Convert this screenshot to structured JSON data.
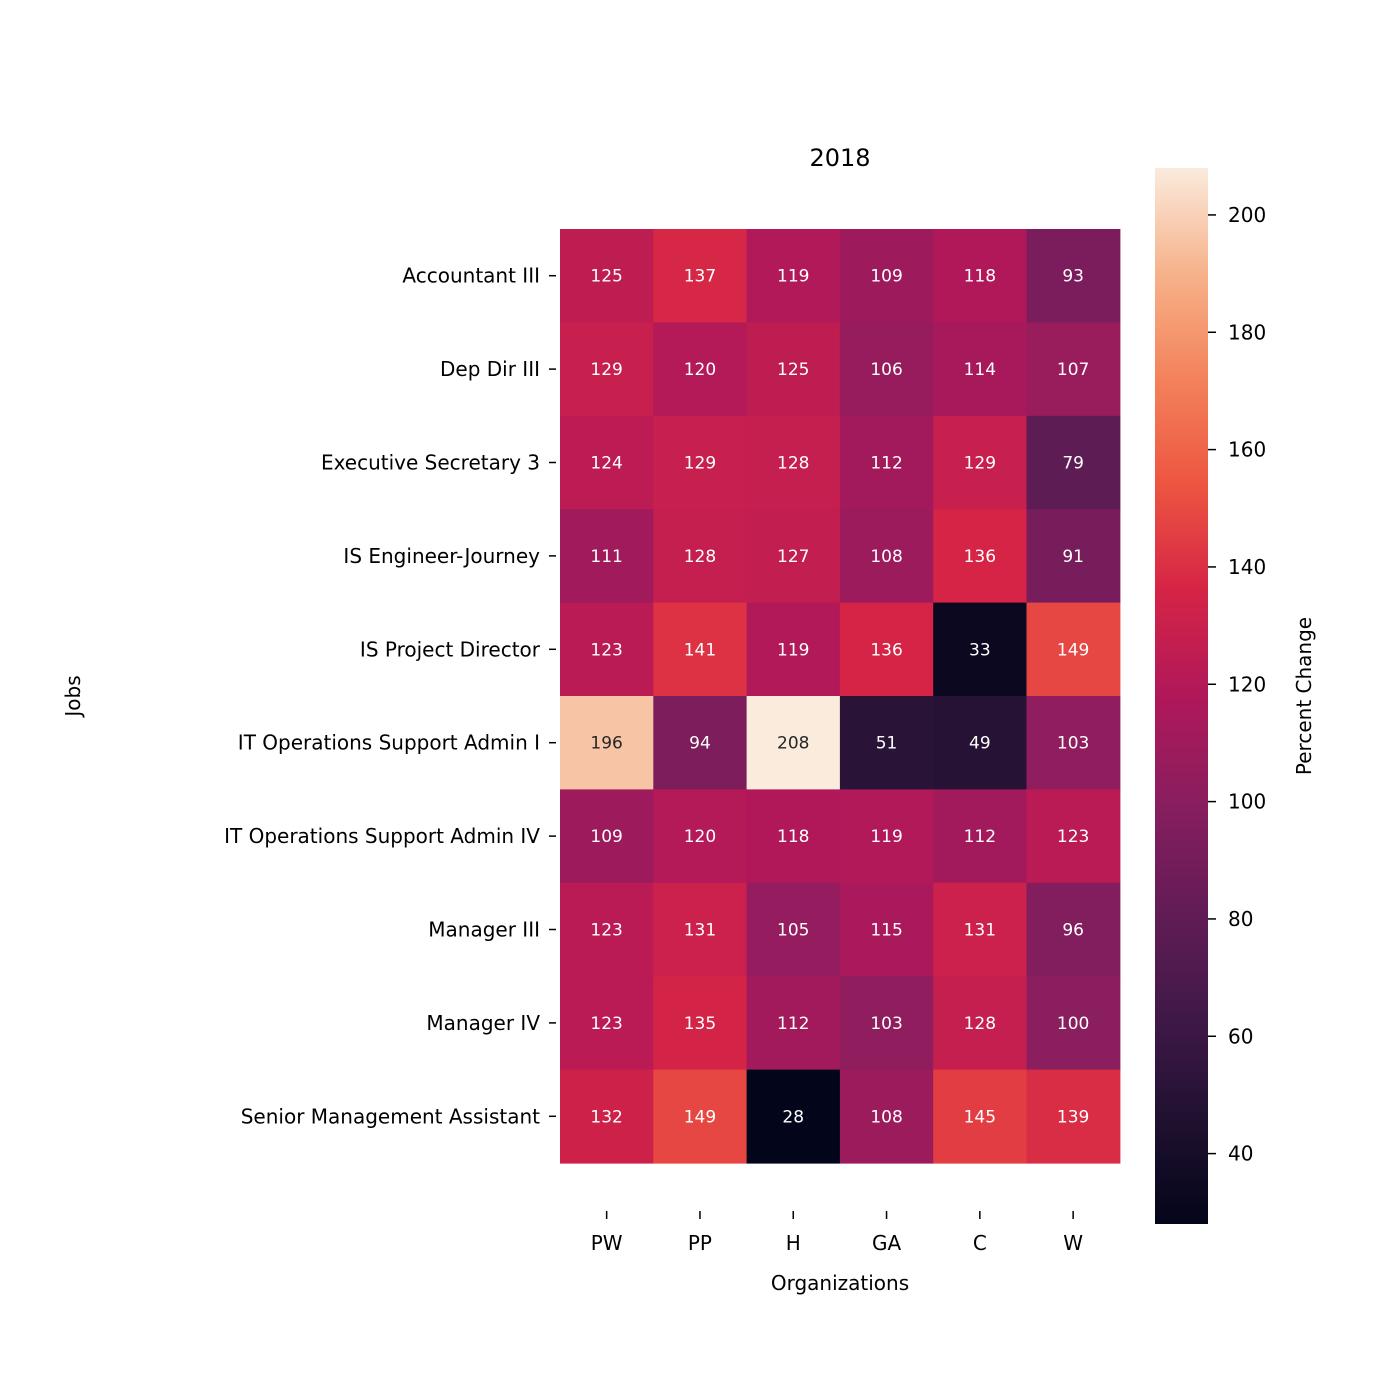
{
  "chart_data": {
    "type": "heatmap",
    "title": "2018",
    "xlabel": "Organizations",
    "ylabel": "Jobs",
    "colorbar_label": "Percent Change",
    "colormap": "rocket",
    "x_categories": [
      "PW",
      "PP",
      "H",
      "GA",
      "C",
      "W"
    ],
    "y_categories": [
      "Accountant III",
      "Dep Dir III",
      "Executive Secretary 3",
      "IS Engineer-Journey",
      "IS Project Director",
      "IT Operations Support Admin I",
      "IT Operations Support Admin IV",
      "Manager III",
      "Manager IV",
      "Senior Management Assistant"
    ],
    "values": [
      [
        125,
        137,
        119,
        109,
        118,
        93
      ],
      [
        129,
        120,
        125,
        106,
        114,
        107
      ],
      [
        124,
        129,
        128,
        112,
        129,
        79
      ],
      [
        111,
        128,
        127,
        108,
        136,
        91
      ],
      [
        123,
        141,
        119,
        136,
        33,
        149
      ],
      [
        196,
        94,
        208,
        51,
        49,
        103
      ],
      [
        109,
        120,
        118,
        119,
        112,
        123
      ],
      [
        123,
        131,
        105,
        115,
        131,
        96
      ],
      [
        123,
        135,
        112,
        103,
        128,
        100
      ],
      [
        132,
        149,
        28,
        108,
        145,
        139
      ]
    ],
    "color_range": [
      28,
      208
    ],
    "colorbar_ticks": [
      40,
      60,
      80,
      100,
      120,
      140,
      160,
      180,
      200
    ]
  }
}
